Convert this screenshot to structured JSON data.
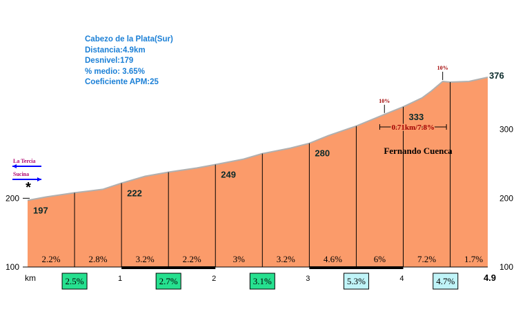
{
  "info": {
    "title": "Cabezo de la Plata(Sur)",
    "distance": "Distancia:4.9km",
    "elevation_gain": "Desnivel:179",
    "avg_grade": "% medio: 3.65%",
    "apm": "Coeficiente APM:25"
  },
  "colors": {
    "fill": "#fb9b6a",
    "outline": "#b0b0b0",
    "divider": "#000000",
    "info_text": "#1a7fd6",
    "box_green": "#26e08f",
    "box_cyan": "#c0f4f8",
    "marker_red": "#a00000",
    "arrow_blue": "#0000ff",
    "label_magenta": "#b0006e"
  },
  "chart_data": {
    "type": "area",
    "title": "Cabezo de la Plata(Sur)",
    "xlabel": "km",
    "ylabel": "",
    "xlim": [
      0,
      4.9
    ],
    "ylim": [
      100,
      376
    ],
    "grid": false,
    "x_ticks": [
      "1",
      "2",
      "3",
      "4",
      "4.9"
    ],
    "y_ticks_left": [
      "200",
      "100"
    ],
    "y_ticks_right": [
      "300",
      "200",
      "100"
    ],
    "profile": {
      "x": [
        0,
        0.2,
        0.5,
        0.8,
        1.0,
        1.25,
        1.5,
        1.8,
        2.0,
        2.3,
        2.5,
        2.8,
        3.0,
        3.2,
        3.5,
        3.8,
        4.0,
        4.2,
        4.3,
        4.42,
        4.5,
        4.7,
        4.9
      ],
      "y": [
        197,
        202,
        208,
        213,
        222,
        232,
        238,
        244,
        249,
        257,
        265,
        273,
        280,
        291,
        305,
        322,
        333,
        346,
        356,
        370,
        369,
        370,
        376
      ]
    },
    "altitude_labels": [
      {
        "x": 0.0,
        "value": "197"
      },
      {
        "x": 1.0,
        "value": "222"
      },
      {
        "x": 2.0,
        "value": "249"
      },
      {
        "x": 3.0,
        "value": "280"
      },
      {
        "x": 4.0,
        "value": "333"
      },
      {
        "x": 4.9,
        "value": "376"
      }
    ],
    "segment_grades": [
      "2.2%",
      "2.8%",
      "3.2%",
      "2.2%",
      "3%",
      "3.2%",
      "4.6%",
      "6%",
      "7.2%",
      "1.7%"
    ],
    "km_grades": [
      {
        "km": 1,
        "value": "2.5%",
        "color": "#26e08f"
      },
      {
        "km": 2,
        "value": "2.7%",
        "color": "#26e08f"
      },
      {
        "km": 3,
        "value": "3.1%",
        "color": "#26e08f"
      },
      {
        "km": 4,
        "value": "5.3%",
        "color": "#c0f4f8"
      },
      {
        "km": 5,
        "value": "4.7%",
        "color": "#c0f4f8"
      }
    ],
    "peak_markers": [
      {
        "x": 3.8,
        "label": "10%"
      },
      {
        "x": 4.42,
        "label": "10%"
      }
    ],
    "span_annotation": {
      "from": 3.75,
      "to": 4.46,
      "label": "0.71km/7.8%"
    },
    "place_label": "Fernando Cuenca",
    "junctions": [
      {
        "label": "La Tercia",
        "direction": "left"
      },
      {
        "label": "Sucina",
        "direction": "right"
      }
    ],
    "start_marker": "*"
  }
}
